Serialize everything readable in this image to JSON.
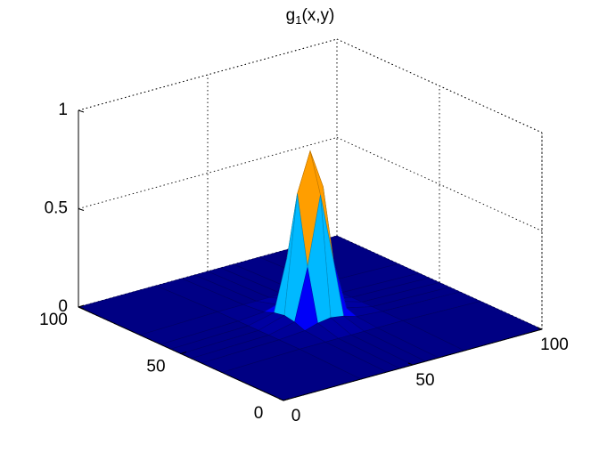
{
  "chart_data": {
    "type": "mesh",
    "title_parts": [
      "g",
      "1",
      "(x,y)"
    ],
    "x": [
      0,
      30,
      40,
      45,
      50,
      55,
      60,
      70,
      100
    ],
    "y": [
      0,
      30,
      40,
      45,
      50,
      55,
      60,
      70,
      100
    ],
    "z": [
      [
        0,
        0,
        0,
        0,
        0,
        0,
        0,
        0,
        0
      ],
      [
        0,
        0.01,
        0.01,
        0.01,
        0.01,
        0.01,
        0.01,
        0.01,
        0
      ],
      [
        0,
        0.01,
        0.02,
        0.04,
        0.05,
        0.04,
        0.02,
        0.01,
        0
      ],
      [
        0,
        0.01,
        0.04,
        0.3,
        0.65,
        0.3,
        0.04,
        0.01,
        0
      ],
      [
        0,
        0.01,
        0.05,
        0.65,
        0.85,
        0.65,
        0.05,
        0.01,
        0
      ],
      [
        0,
        0.01,
        0.04,
        0.3,
        0.65,
        0.3,
        0.04,
        0.01,
        0
      ],
      [
        0,
        0.01,
        0.02,
        0.04,
        0.05,
        0.04,
        0.02,
        0.01,
        0
      ],
      [
        0,
        0.01,
        0.01,
        0.01,
        0.01,
        0.01,
        0.01,
        0.01,
        0
      ],
      [
        0,
        0,
        0,
        0,
        0,
        0,
        0,
        0,
        0
      ]
    ],
    "colormap": "jet",
    "xlim": [
      0,
      100
    ],
    "ylim": [
      0,
      100
    ],
    "zlim": [
      0,
      1
    ],
    "xticks": [
      0,
      50,
      100
    ],
    "yticks": [
      0,
      50,
      100
    ],
    "zticks": [
      0,
      0.5,
      1
    ],
    "grid": true
  }
}
